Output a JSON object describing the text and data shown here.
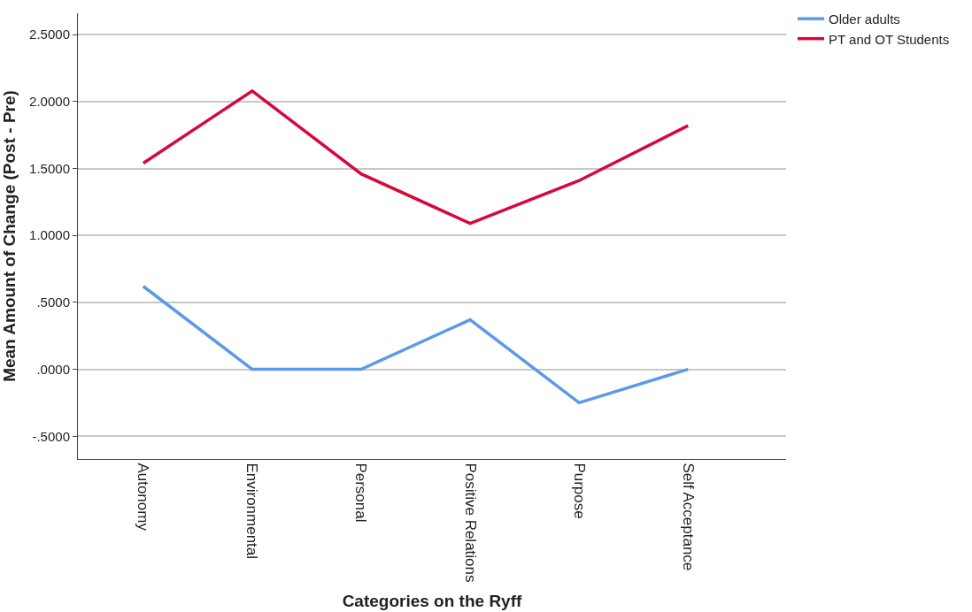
{
  "chart_data": {
    "type": "line",
    "xlabel": "Categories on the Ryff",
    "ylabel": "Mean Amount of Change (Post - Pre)",
    "categories": [
      "Autonomy",
      "Environmental",
      "Personal",
      "Positive Relations",
      "Purpose",
      "Self Acceptance"
    ],
    "series": [
      {
        "name": "Older adults",
        "color": "#5b9be6",
        "values": [
          0.62,
          0.0,
          0.0,
          0.37,
          -0.25,
          0.0
        ]
      },
      {
        "name": "PT and OT Students",
        "color": "#d6083b",
        "values": [
          1.54,
          2.08,
          1.46,
          1.09,
          1.41,
          1.82
        ]
      }
    ],
    "ylim": [
      -0.67,
      2.66
    ],
    "yticks": [
      {
        "value": -0.5,
        "label": "-.5000"
      },
      {
        "value": 0,
        "label": ".0000"
      },
      {
        "value": 0.5,
        "label": ".5000"
      },
      {
        "value": 1,
        "label": "1.0000"
      },
      {
        "value": 1.5,
        "label": "1.5000"
      },
      {
        "value": 2,
        "label": "2.0000"
      },
      {
        "value": 2.5,
        "label": "2.5000"
      }
    ],
    "grid": "y",
    "legend": "top right",
    "marker": "none",
    "line_style": "solid"
  }
}
